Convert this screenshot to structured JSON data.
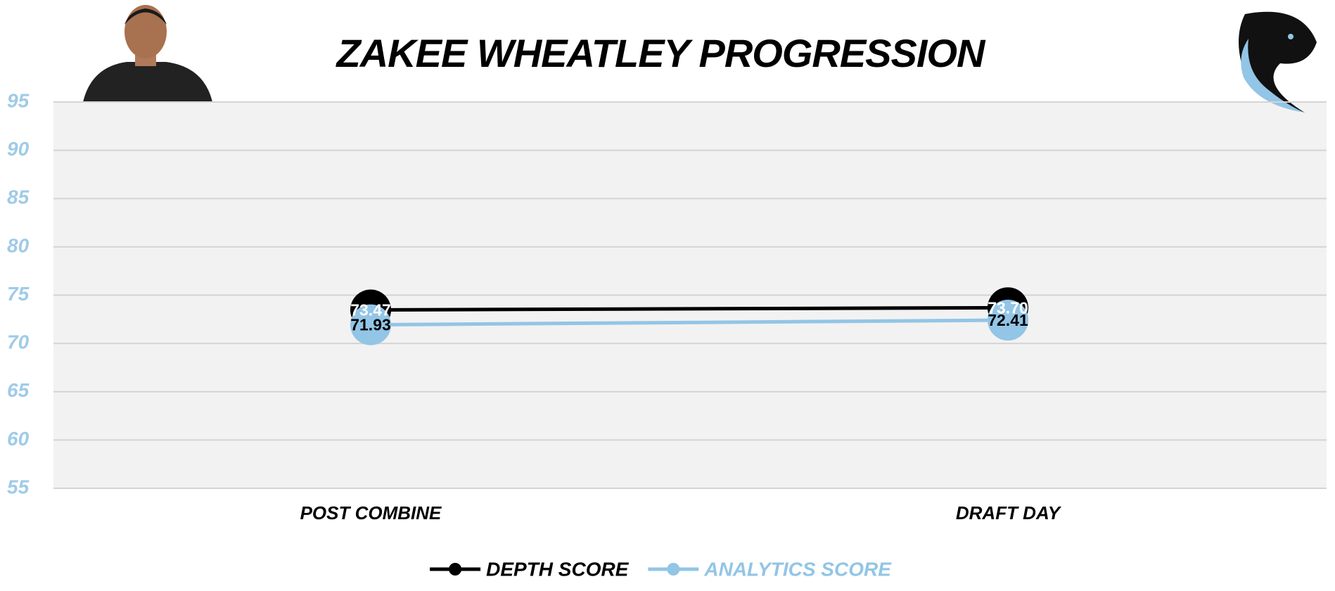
{
  "chart_data": {
    "type": "line",
    "title": "ZAKEE WHEATLEY PROGRESSION",
    "categories": [
      "POST COMBINE",
      "DRAFT DAY"
    ],
    "series": [
      {
        "name": "DEPTH SCORE",
        "color": "#000000",
        "values": [
          73.47,
          73.7
        ],
        "value_labels": [
          "73.47",
          "73.70"
        ]
      },
      {
        "name": "ANALYTICS SCORE",
        "color": "#92c5e6",
        "values": [
          71.93,
          72.41
        ],
        "value_labels": [
          "71.93",
          "72.41"
        ]
      }
    ],
    "ylim": [
      55,
      95
    ],
    "yticks": [
      55,
      60,
      65,
      70,
      75,
      80,
      85,
      90,
      95
    ],
    "grid": true
  }
}
